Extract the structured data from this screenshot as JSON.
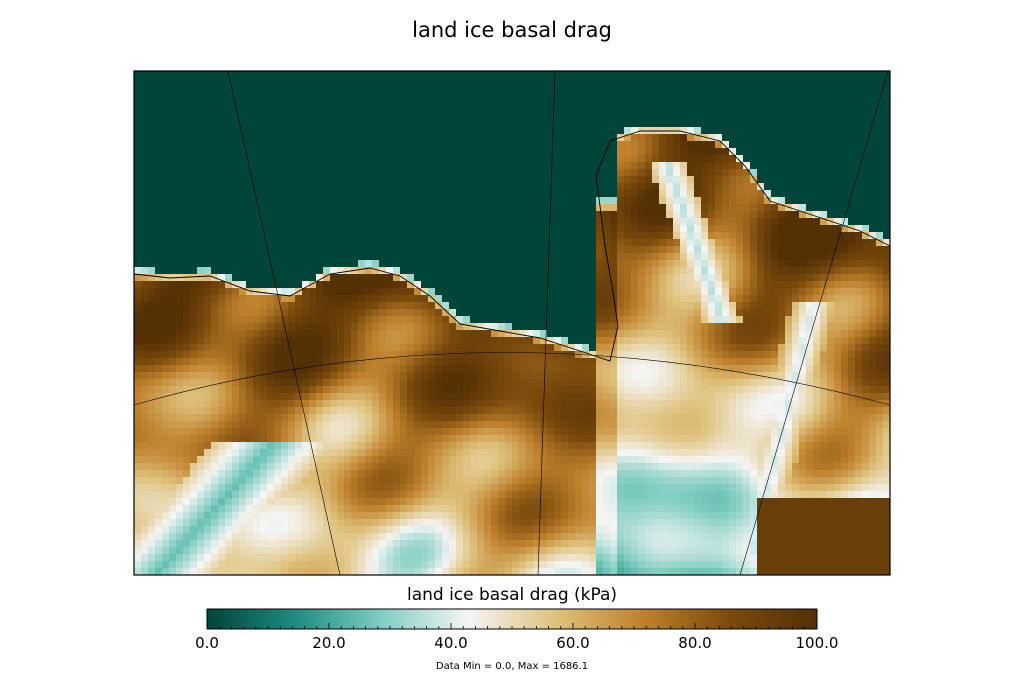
{
  "chart_data": {
    "type": "heatmap",
    "title": "land ice basal drag",
    "colorbar": {
      "label": "land ice basal drag (kPa)",
      "range": [
        0.0,
        100.0
      ],
      "ticks": [
        0.0,
        20.0,
        40.0,
        60.0,
        80.0,
        100.0
      ],
      "tick_labels": [
        "0.0",
        "20.0",
        "40.0",
        "60.0",
        "80.0",
        "100.0"
      ],
      "colormap": "BrBG_r",
      "colors": [
        "#00443a",
        "#1f8a80",
        "#80cdc1",
        "#f5f5f5",
        "#dfc27d",
        "#bf812d",
        "#7a4a0c",
        "#543005"
      ]
    },
    "data_min": 0.0,
    "data_max": 1686.1,
    "stats_text": "Data Min = 0.0, Max = 1686.1",
    "background_value": 0.0
  }
}
